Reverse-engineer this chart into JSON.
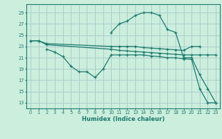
{
  "xlabel": "Humidex (Indice chaleur)",
  "bg_color": "#cceedd",
  "grid_color": "#aacccc",
  "line_color": "#1a7a6e",
  "x_ticks": [
    0,
    1,
    2,
    3,
    4,
    5,
    6,
    7,
    8,
    9,
    10,
    11,
    12,
    13,
    14,
    15,
    16,
    17,
    18,
    19,
    20,
    21,
    22,
    23
  ],
  "y_ticks": [
    13,
    15,
    17,
    19,
    21,
    23,
    25,
    27,
    29
  ],
  "xlim": [
    -0.5,
    23.5
  ],
  "ylim": [
    12.0,
    30.5
  ],
  "line1_x": [
    0,
    1,
    2,
    10,
    11,
    12,
    13,
    14,
    15,
    16,
    17,
    18,
    19,
    20,
    21
  ],
  "line1_y": [
    24.0,
    24.0,
    23.5,
    23.0,
    23.0,
    23.0,
    23.0,
    22.8,
    22.7,
    22.6,
    22.5,
    22.4,
    22.3,
    23.0,
    23.0
  ],
  "line2_x": [
    2,
    3,
    4,
    5,
    6,
    7,
    8,
    9,
    10,
    11,
    12,
    13,
    14,
    15,
    16,
    17,
    18,
    19,
    20,
    21,
    22,
    23
  ],
  "line2_y": [
    22.5,
    22.0,
    21.2,
    19.5,
    18.5,
    18.5,
    17.5,
    19.0,
    21.5,
    21.5,
    21.5,
    21.5,
    21.5,
    21.3,
    21.2,
    21.0,
    21.0,
    20.8,
    20.7,
    15.5,
    13.0,
    13.0
  ],
  "line3_x": [
    10,
    11,
    12,
    13,
    14,
    15,
    16,
    17,
    18,
    19,
    20,
    21,
    22,
    23
  ],
  "line3_y": [
    25.5,
    27.0,
    27.5,
    28.5,
    29.0,
    29.0,
    28.5,
    26.0,
    25.5,
    21.0,
    21.0,
    18.0,
    15.5,
    13.0
  ],
  "line4_x": [
    0,
    1,
    2,
    10,
    11,
    12,
    13,
    14,
    15,
    16,
    17,
    18,
    19,
    20,
    21,
    22,
    23
  ],
  "line4_y": [
    24.0,
    24.0,
    23.3,
    22.5,
    22.3,
    22.2,
    22.1,
    22.0,
    21.9,
    21.8,
    21.7,
    21.6,
    21.5,
    21.5,
    21.5,
    21.5,
    21.5
  ]
}
